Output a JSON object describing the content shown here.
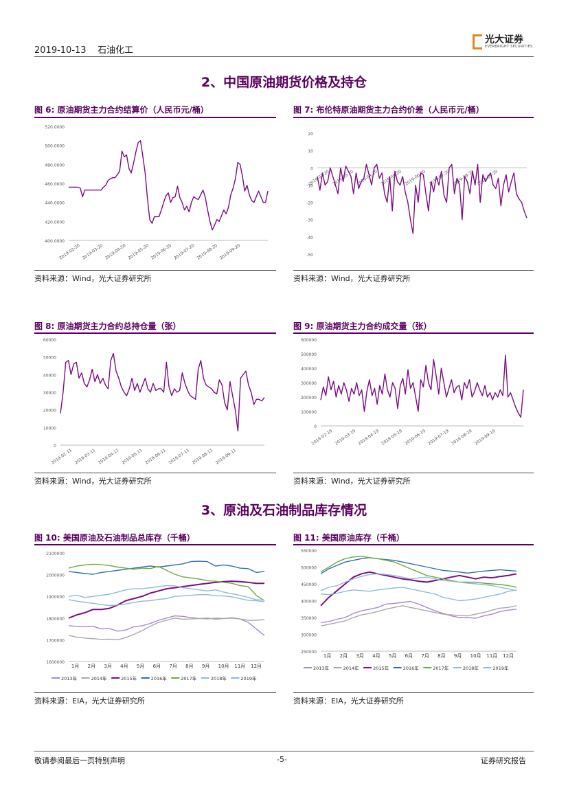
{
  "header": {
    "date": "2019-10-13",
    "industry": "石油化工",
    "logo_cn": "光大证券",
    "logo_en": "EVERBRIGHT SECURITIES"
  },
  "sections": {
    "s2": "2、中国原油期货价格及持仓",
    "s3": "3、原油及石油制品库存情况"
  },
  "figures": {
    "f6": "图 6:   原油期货主力合约结算价（人民币元/桶）",
    "f7": "图 7:  布伦特原油期货主力合约价差（人民币元/桶）",
    "f8": "图 8:  原油期货主力合约总持仓量（张）",
    "f9": "图 9:  原油期货主力合约成交量（张）",
    "f10": "图 10:  美国原油及石油制品总库存（千桶）",
    "f11": "图 11:  美国原油库存（千桶）"
  },
  "sources": {
    "wind": "资料来源：Wind，光大证券研究所",
    "eia": "资料来源：EIA，光大证券研究所"
  },
  "footer": {
    "left": "敬请参阅最后一页特别声明",
    "center": "-5-",
    "right": "证券研究报告"
  },
  "colors": {
    "purple": "#7b0b82",
    "blue": "#2e6db4",
    "green": "#6aab3a",
    "lavender": "#a98ac8",
    "gray": "#a8a8a8",
    "lightblue": "#8fb9dc",
    "deep": "#6a006f"
  },
  "chart_data": [
    {
      "id": "f6",
      "type": "line",
      "yticks": [
        "400.0000",
        "420.0000",
        "440.0000",
        "460.0000",
        "480.0000",
        "500.0000",
        "520.0000"
      ],
      "ylim": [
        400,
        520
      ],
      "xticks": [
        "2019-02-20",
        "2019-03-20",
        "2019-04-20",
        "2019-05-20",
        "2019-06-20",
        "2019-07-20",
        "2019-08-20",
        "2019-09-20"
      ],
      "series": [
        {
          "values": [
            456,
            456,
            456,
            456,
            456,
            455,
            446,
            453,
            453,
            453,
            453,
            453,
            453,
            453,
            453,
            456,
            458,
            463,
            465,
            466,
            466,
            469,
            473,
            494,
            488,
            490,
            476,
            471,
            481,
            493,
            503,
            505,
            489,
            471,
            444,
            422,
            418,
            425,
            425,
            425,
            432,
            440,
            447,
            450,
            440,
            445,
            446,
            457,
            445,
            440,
            432,
            436,
            430,
            440,
            446,
            444,
            443,
            448,
            453,
            445,
            432,
            420,
            411,
            416,
            422,
            420,
            426,
            432,
            428,
            435,
            448,
            455,
            465,
            482,
            480,
            468,
            452,
            458,
            448,
            442,
            440,
            446,
            452,
            446,
            440,
            440,
            452
          ]
        }
      ]
    },
    {
      "id": "f7",
      "type": "line",
      "yticks": [
        "-50",
        "-40",
        "-30",
        "-20",
        "-10",
        "0",
        "10",
        "20"
      ],
      "ylim": [
        -50,
        20
      ],
      "xticks": [
        "2019-02-20",
        "2019-03-20",
        "2019-04-20",
        "2019-05-20",
        "2019-06-20",
        "2019-07-20",
        "2019-08-20",
        "2019-09-20"
      ],
      "series": [
        {
          "values": [
            -5,
            -13,
            -3,
            -10,
            -8,
            0,
            -5,
            -10,
            -15,
            0,
            -8,
            1,
            -2,
            -5,
            -15,
            -3,
            -12,
            -8,
            -6,
            2,
            -4,
            -10,
            0,
            2,
            -6,
            -3,
            -15,
            -20,
            -5,
            -25,
            -2,
            -8,
            -10,
            -5,
            -14,
            -20,
            -30,
            -38,
            -10,
            -20,
            -3,
            -4,
            -15,
            -25,
            -8,
            -14,
            -5,
            -10,
            -2,
            -16,
            -20,
            0,
            2,
            -15,
            -6,
            -10,
            -30,
            -5,
            -8,
            -15,
            -2,
            -10,
            2,
            -20,
            -4,
            -8,
            -5,
            -3,
            -10,
            -12,
            -6,
            -22,
            -10,
            -4,
            -14,
            -8,
            -3,
            -15,
            -18,
            -20,
            -25,
            -29
          ]
        }
      ]
    },
    {
      "id": "f8",
      "type": "line",
      "yticks": [
        "0",
        "10000",
        "20000",
        "30000",
        "40000",
        "50000",
        "60000"
      ],
      "ylim": [
        0,
        60000
      ],
      "xticks": [
        "2019-02-11",
        "2019-03-11",
        "2019-04-11",
        "2019-05-11",
        "2019-06-11",
        "2019-07-11",
        "2019-08-11",
        "2019-09-11"
      ],
      "series": [
        {
          "values": [
            18000,
            30000,
            47000,
            48000,
            40000,
            46000,
            47000,
            38000,
            41000,
            35000,
            33000,
            37000,
            43000,
            36000,
            40000,
            35000,
            38000,
            34000,
            32000,
            48000,
            52000,
            42000,
            38000,
            33000,
            30000,
            28000,
            32000,
            38000,
            31000,
            35000,
            30000,
            34000,
            38000,
            32000,
            30000,
            35000,
            31000,
            32000,
            32000,
            30000,
            47000,
            33000,
            28000,
            32000,
            30000,
            31000,
            41000,
            35000,
            31000,
            28000,
            27000,
            26000,
            43000,
            48000,
            38000,
            34000,
            33000,
            32000,
            30000,
            29000,
            37000,
            34000,
            24000,
            20000,
            36000,
            28000,
            20000,
            8000,
            38000,
            40000,
            42000,
            34000,
            30000,
            23000,
            26000,
            26000,
            25000,
            27000
          ]
        }
      ]
    },
    {
      "id": "f9",
      "type": "line",
      "yticks": [
        "0",
        "100000",
        "200000",
        "300000",
        "400000",
        "500000",
        "600000"
      ],
      "ylim": [
        0,
        600000
      ],
      "xticks": [
        "2019-02-19",
        "2019-03-19",
        "2019-04-19",
        "2019-05-19",
        "2019-06-19",
        "2019-07-19",
        "2019-08-19",
        "2019-09-19"
      ],
      "series": [
        {
          "values": [
            180000,
            270000,
            210000,
            340000,
            250000,
            310000,
            200000,
            280000,
            220000,
            300000,
            250000,
            170000,
            260000,
            220000,
            300000,
            210000,
            250000,
            100000,
            240000,
            320000,
            210000,
            260000,
            150000,
            280000,
            220000,
            360000,
            250000,
            200000,
            300000,
            260000,
            120000,
            280000,
            330000,
            220000,
            390000,
            260000,
            300000,
            200000,
            100000,
            320000,
            270000,
            420000,
            300000,
            250000,
            460000,
            350000,
            220000,
            400000,
            300000,
            200000,
            260000,
            320000,
            230000,
            270000,
            280000,
            180000,
            300000,
            260000,
            320000,
            200000,
            240000,
            300000,
            250000,
            210000,
            280000,
            200000,
            230000,
            180000,
            230000,
            200000,
            250000,
            210000,
            490000,
            200000,
            230000,
            180000,
            130000,
            90000,
            60000,
            250000
          ]
        }
      ]
    },
    {
      "id": "f10",
      "type": "line",
      "yticks": [
        "1600000",
        "1700000",
        "1800000",
        "1900000",
        "2000000",
        "2100000"
      ],
      "ylim": [
        1600000,
        2100000
      ],
      "xticks": [
        "1月",
        "2月",
        "3月",
        "4月",
        "5月",
        "6月",
        "7月",
        "8月",
        "9月",
        "10月",
        "11月",
        "12月"
      ],
      "legend": [
        "2013年",
        "2014年",
        "2015年",
        "2016年",
        "2017年",
        "2018年",
        "2019年"
      ],
      "series": [
        {
          "name": "2013年",
          "color": "lavender",
          "values": [
            1765000,
            1762000,
            1760000,
            1762000,
            1750000,
            1752000,
            1740000,
            1745000,
            1760000,
            1765000,
            1775000,
            1790000,
            1800000,
            1810000,
            1808000,
            1802000,
            1798000,
            1800000,
            1795000,
            1798000,
            1800000,
            1796000,
            1780000,
            1750000,
            1720000
          ]
        },
        {
          "name": "2014年",
          "color": "gray",
          "values": [
            1720000,
            1712000,
            1708000,
            1705000,
            1702000,
            1703000,
            1700000,
            1710000,
            1725000,
            1742000,
            1762000,
            1780000,
            1790000,
            1800000,
            1795000,
            1796000,
            1798000,
            1796000,
            1800000,
            1798000,
            1802000,
            1796000,
            1790000,
            1790000,
            1793000
          ]
        },
        {
          "name": "2015年",
          "color": "purple",
          "values": [
            1800000,
            1815000,
            1825000,
            1840000,
            1840000,
            1845000,
            1860000,
            1880000,
            1890000,
            1900000,
            1915000,
            1925000,
            1935000,
            1940000,
            1945000,
            1950000,
            1955000,
            1960000,
            1965000,
            1968000,
            1970000,
            1968000,
            1965000,
            1960000,
            1960000
          ]
        },
        {
          "name": "2016年",
          "color": "blue",
          "values": [
            2015000,
            2010000,
            2005000,
            2002000,
            2010000,
            2015000,
            2020000,
            2025000,
            2030000,
            2035000,
            2040000,
            2035000,
            2040000,
            2045000,
            2050000,
            2060000,
            2062000,
            2060000,
            2040000,
            2045000,
            2040000,
            2030000,
            2028000,
            2010000,
            2015000
          ]
        },
        {
          "name": "2017年",
          "color": "green",
          "values": [
            2030000,
            2040000,
            2045000,
            2048000,
            2046000,
            2042000,
            2035000,
            2030000,
            2025000,
            2030000,
            2028000,
            2038000,
            2020000,
            2002000,
            1990000,
            1985000,
            1980000,
            1972000,
            1970000,
            1965000,
            1960000,
            1950000,
            1945000,
            1905000,
            1880000
          ]
        },
        {
          "name": "2018年",
          "color": "lightblue",
          "values": [
            1885000,
            1878000,
            1872000,
            1868000,
            1862000,
            1858000,
            1860000,
            1865000,
            1872000,
            1878000,
            1880000,
            1886000,
            1890000,
            1900000,
            1902000,
            1905000,
            1908000,
            1908000,
            1903000,
            1902000,
            1898000,
            1890000,
            1882000,
            1880000,
            1875000
          ]
        },
        {
          "name": "2019年",
          "color": "lightblue",
          "values": [
            1900000,
            1905000,
            1895000,
            1900000,
            1905000,
            1910000,
            1920000,
            1930000,
            1935000,
            1935000,
            1940000,
            1945000,
            1950000,
            1948000,
            1940000,
            1935000,
            1930000,
            1925000,
            1930000,
            1920000,
            1912000,
            1905000,
            1895000,
            1885000,
            1882000
          ]
        }
      ]
    },
    {
      "id": "f11",
      "type": "line",
      "yticks": [
        "250000",
        "300000",
        "350000",
        "400000",
        "450000",
        "500000",
        "550000"
      ],
      "ylim": [
        250000,
        550000
      ],
      "xticks": [
        "1月",
        "2月",
        "3月",
        "4月",
        "5月",
        "6月",
        "7月",
        "8月",
        "9月",
        "10月",
        "11月",
        "12月"
      ],
      "legend": [
        "2013年",
        "2014年",
        "2015年",
        "2016年",
        "2017年",
        "2018年",
        "2019年"
      ],
      "series": [
        {
          "name": "2013年",
          "color": "lavender",
          "values": [
            335000,
            338000,
            345000,
            350000,
            362000,
            370000,
            375000,
            380000,
            390000,
            392000,
            395000,
            398000,
            390000,
            380000,
            370000,
            362000,
            355000,
            350000,
            350000,
            348000,
            355000,
            360000,
            368000,
            372000,
            375000
          ]
        },
        {
          "name": "2014年",
          "color": "gray",
          "values": [
            325000,
            330000,
            335000,
            340000,
            350000,
            358000,
            362000,
            368000,
            375000,
            380000,
            385000,
            380000,
            375000,
            370000,
            365000,
            360000,
            358000,
            356000,
            355000,
            360000,
            365000,
            372000,
            378000,
            380000,
            385000
          ]
        },
        {
          "name": "2015年",
          "color": "purple",
          "values": [
            385000,
            410000,
            430000,
            450000,
            470000,
            480000,
            485000,
            480000,
            475000,
            470000,
            465000,
            462000,
            458000,
            455000,
            460000,
            465000,
            470000,
            475000,
            470000,
            465000,
            470000,
            468000,
            472000,
            475000,
            480000
          ]
        },
        {
          "name": "2016年",
          "color": "blue",
          "values": [
            480000,
            495000,
            505000,
            515000,
            520000,
            525000,
            528000,
            525000,
            522000,
            520000,
            515000,
            510000,
            505000,
            500000,
            495000,
            490000,
            488000,
            485000,
            482000,
            485000,
            488000,
            490000,
            492000,
            490000,
            488000
          ]
        },
        {
          "name": "2017年",
          "color": "green",
          "values": [
            485000,
            500000,
            515000,
            525000,
            530000,
            532000,
            528000,
            525000,
            520000,
            515000,
            505000,
            495000,
            485000,
            475000,
            470000,
            465000,
            460000,
            455000,
            455000,
            455000,
            452000,
            450000,
            448000,
            445000,
            440000
          ]
        },
        {
          "name": "2018年",
          "color": "lightblue",
          "values": [
            420000,
            418000,
            422000,
            428000,
            432000,
            430000,
            428000,
            432000,
            435000,
            438000,
            440000,
            435000,
            430000,
            425000,
            420000,
            410000,
            405000,
            400000,
            402000,
            405000,
            410000,
            415000,
            420000,
            428000,
            432000
          ]
        },
        {
          "name": "2019年",
          "color": "lightblue",
          "values": [
            430000,
            440000,
            445000,
            455000,
            465000,
            472000,
            478000,
            480000,
            478000,
            475000,
            470000,
            465000,
            468000,
            470000,
            465000,
            460000,
            458000,
            455000,
            452000,
            450000,
            448000,
            445000,
            440000,
            435000,
            430000
          ]
        }
      ]
    }
  ]
}
